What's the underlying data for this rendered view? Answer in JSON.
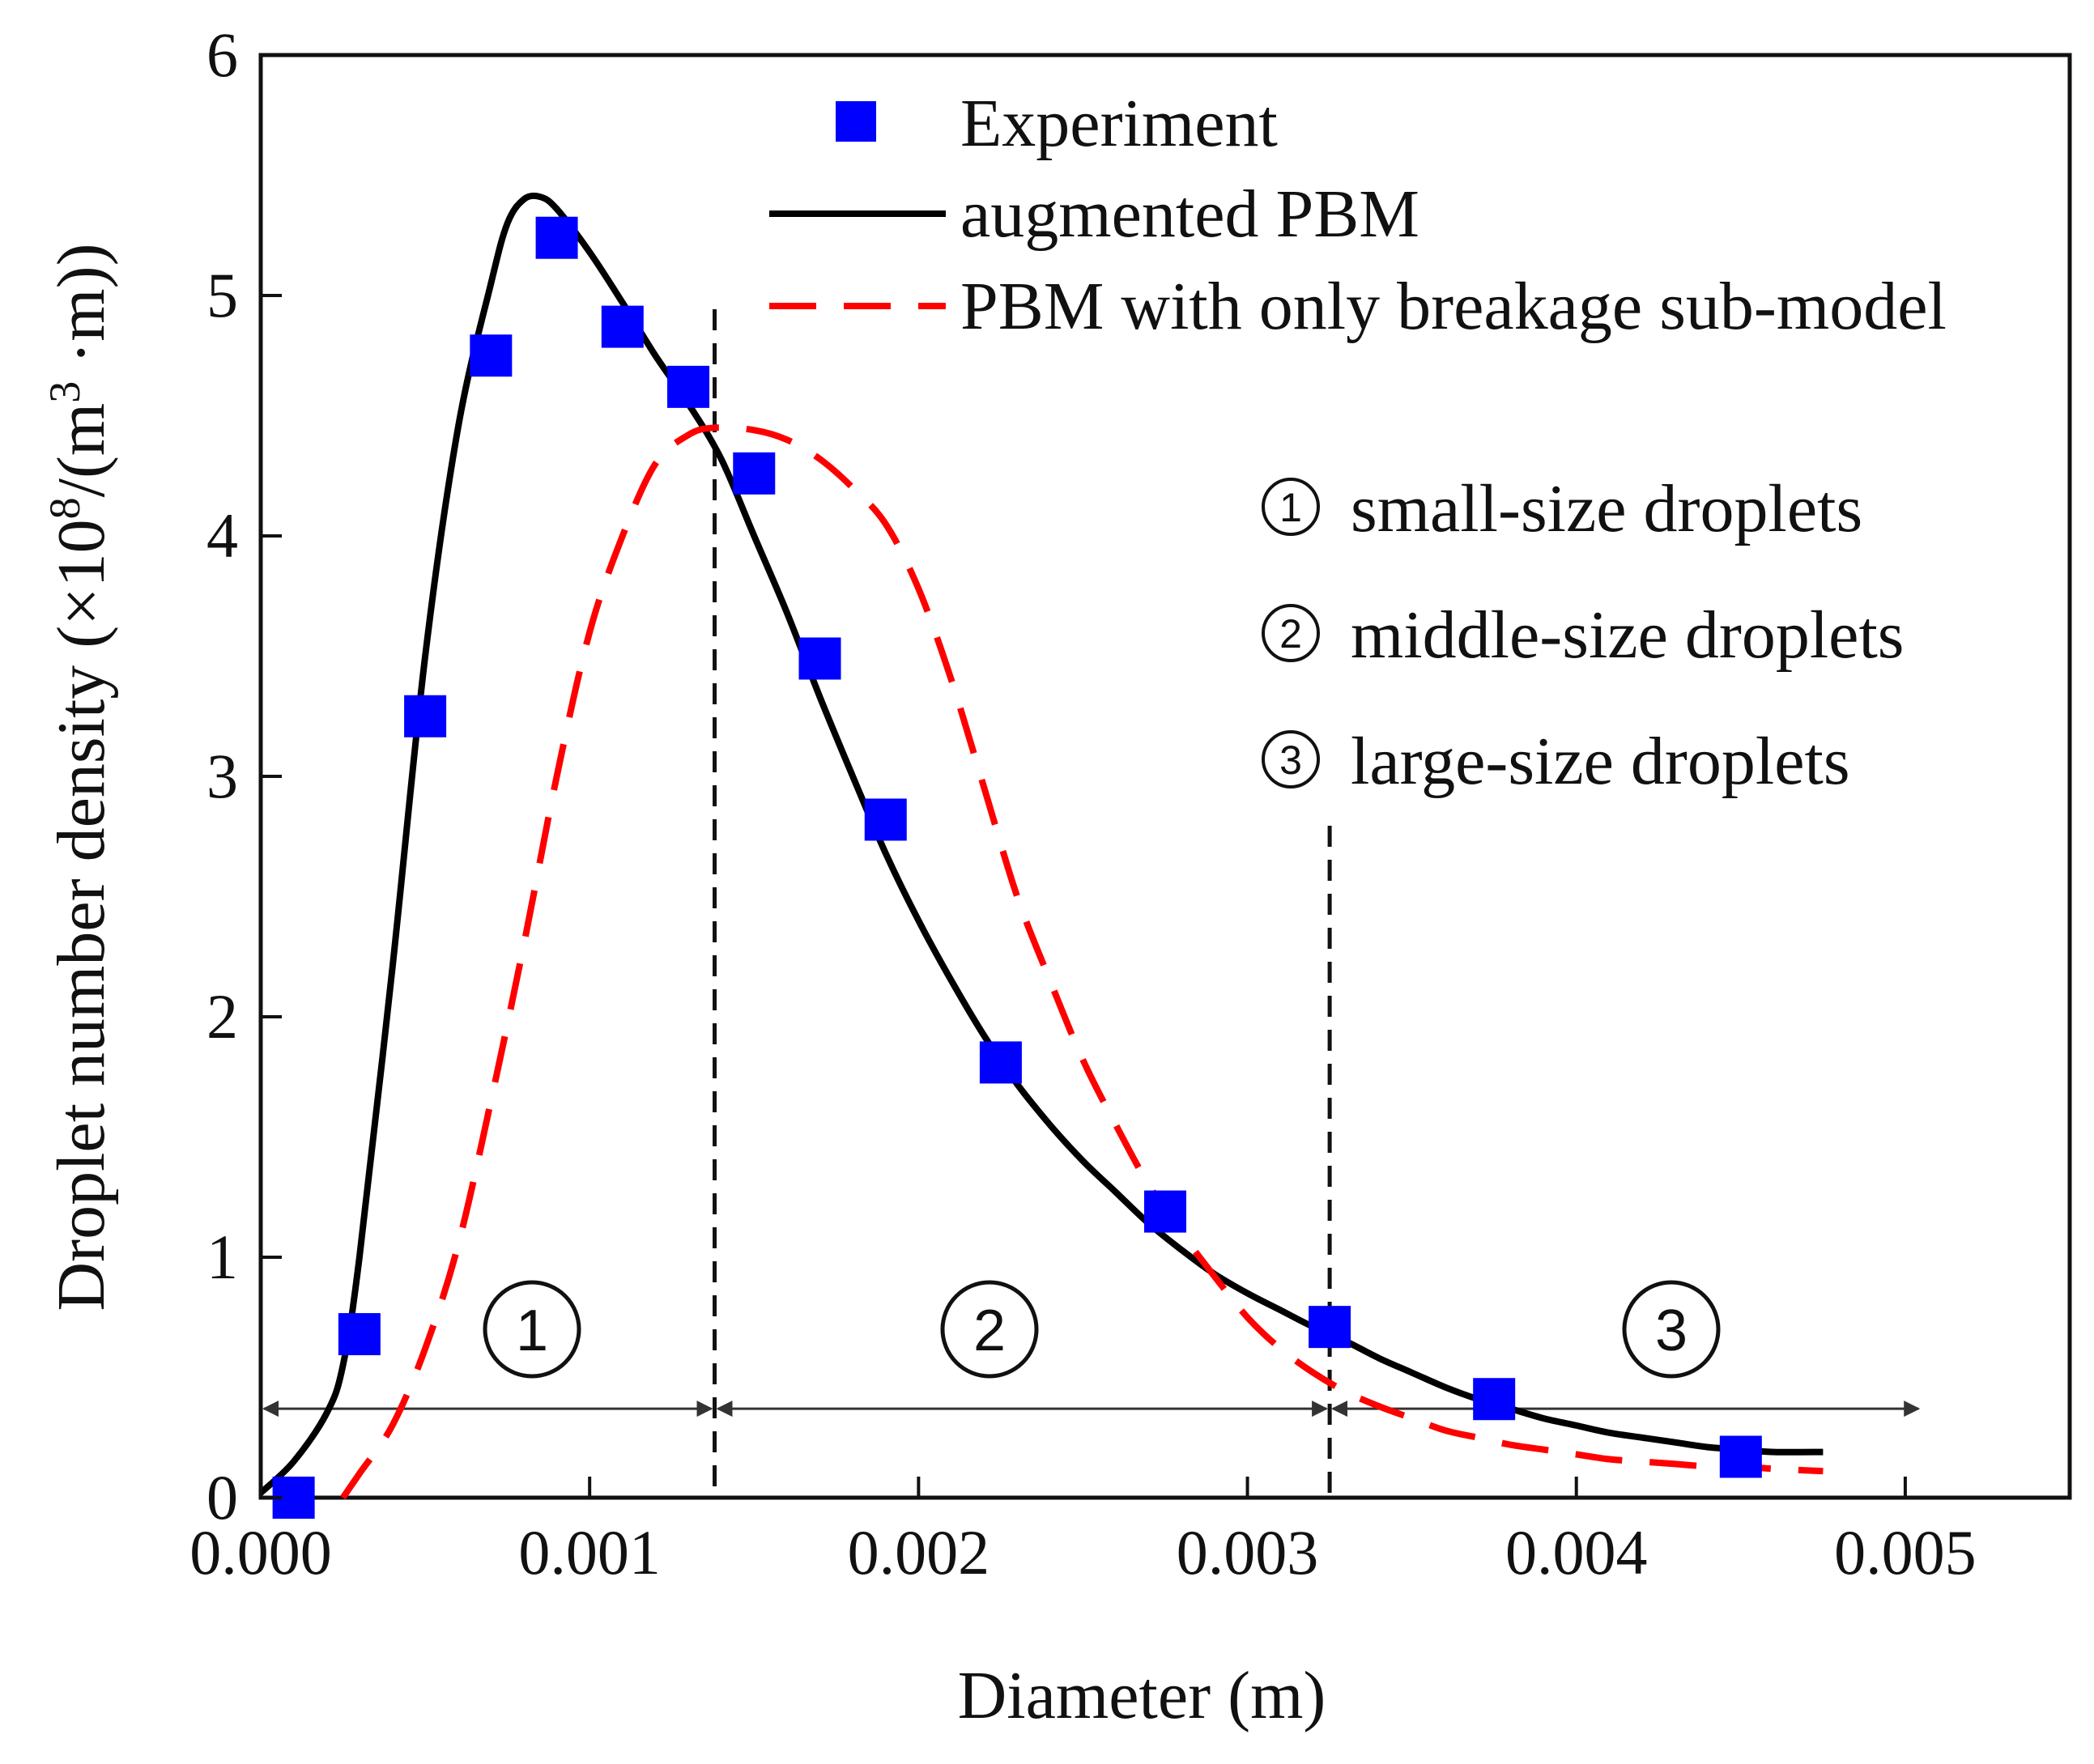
{
  "chart_data": {
    "type": "line",
    "title": "",
    "xlabel": "Diameter (m)",
    "ylabel": {
      "main": "Droplet number density (×10",
      "exp1": "8",
      "mid": "/(m",
      "exp2": "3",
      "end": " ·m))"
    },
    "xlim": [
      0,
      0.0055
    ],
    "ylim": [
      0,
      6
    ],
    "x_ticks": [
      0,
      0.001,
      0.002,
      0.003,
      0.004,
      0.005
    ],
    "x_tick_labels": [
      "0.000",
      "0.001",
      "0.002",
      "0.003",
      "0.004",
      "0.005"
    ],
    "y_ticks": [
      0,
      1,
      2,
      3,
      4,
      5,
      6
    ],
    "y_tick_labels": [
      "0",
      "1",
      "2",
      "3",
      "4",
      "5",
      "6"
    ],
    "grid": false,
    "legend_position": "top-right",
    "series": [
      {
        "name": "Experiment",
        "kind": "scatter",
        "color": "#0000ff",
        "x": [
          0.0001,
          0.0003,
          0.0005,
          0.0007,
          0.0009,
          0.0011,
          0.0013,
          0.0015,
          0.0017,
          0.0019,
          0.00225,
          0.00275,
          0.00325,
          0.00375,
          0.0045
        ],
        "y": [
          0.0,
          0.68,
          3.25,
          4.75,
          5.24,
          4.87,
          4.62,
          4.26,
          3.49,
          2.82,
          1.81,
          1.19,
          0.71,
          0.41,
          0.17
        ]
      },
      {
        "name": "augmented PBM",
        "kind": "line",
        "color": "#000000",
        "dash": "solid",
        "x": [
          0.0,
          0.0001,
          0.0002,
          0.00025,
          0.0003,
          0.0004,
          0.0005,
          0.0006,
          0.0007,
          0.00075,
          0.0008,
          0.00085,
          0.0009,
          0.001,
          0.0011,
          0.0012,
          0.0013,
          0.0014,
          0.0015,
          0.0016,
          0.0017,
          0.0018,
          0.0019,
          0.002,
          0.0021,
          0.0022,
          0.0023,
          0.0024,
          0.0025,
          0.0026,
          0.0027,
          0.0028,
          0.0029,
          0.003,
          0.0031,
          0.0032,
          0.0033,
          0.0034,
          0.0035,
          0.0036,
          0.0037,
          0.0038,
          0.0039,
          0.004,
          0.0041,
          0.0042,
          0.0043,
          0.0044,
          0.0045,
          0.0046,
          0.00475
        ],
        "y": [
          0.02,
          0.15,
          0.35,
          0.55,
          1.0,
          2.2,
          3.5,
          4.45,
          5.05,
          5.3,
          5.4,
          5.41,
          5.36,
          5.18,
          4.97,
          4.75,
          4.55,
          4.32,
          4.0,
          3.68,
          3.33,
          3.0,
          2.68,
          2.4,
          2.15,
          1.92,
          1.72,
          1.55,
          1.4,
          1.27,
          1.14,
          1.03,
          0.93,
          0.85,
          0.78,
          0.71,
          0.65,
          0.58,
          0.52,
          0.46,
          0.41,
          0.37,
          0.33,
          0.3,
          0.27,
          0.25,
          0.23,
          0.21,
          0.2,
          0.19,
          0.19
        ]
      },
      {
        "name": "PBM with only breakage sub-model",
        "kind": "line",
        "color": "#ff0000",
        "dash": "dashed",
        "x": [
          0.00025,
          0.0003,
          0.0004,
          0.0005,
          0.0006,
          0.0007,
          0.0008,
          0.0009,
          0.001,
          0.0011,
          0.0012,
          0.0013,
          0.00138,
          0.0015,
          0.0016,
          0.0017,
          0.0018,
          0.0019,
          0.002,
          0.0021,
          0.0022,
          0.0023,
          0.0024,
          0.0025,
          0.0026,
          0.0027,
          0.0028,
          0.0029,
          0.003,
          0.0031,
          0.0032,
          0.0033,
          0.0034,
          0.0035,
          0.0036,
          0.0037,
          0.0038,
          0.0039,
          0.004,
          0.0041,
          0.0042,
          0.0043,
          0.0044,
          0.0045,
          0.0046,
          0.00475
        ],
        "y": [
          0.0,
          0.1,
          0.3,
          0.62,
          1.05,
          1.65,
          2.3,
          3.0,
          3.6,
          4.0,
          4.3,
          4.42,
          4.45,
          4.44,
          4.4,
          4.32,
          4.2,
          4.05,
          3.78,
          3.4,
          2.95,
          2.5,
          2.15,
          1.82,
          1.55,
          1.3,
          1.1,
          0.92,
          0.75,
          0.62,
          0.52,
          0.44,
          0.38,
          0.33,
          0.28,
          0.25,
          0.22,
          0.2,
          0.18,
          0.16,
          0.15,
          0.14,
          0.13,
          0.13,
          0.12,
          0.11
        ]
      }
    ],
    "dividers_x": [
      0.00138,
      0.00325
    ],
    "regions": [
      {
        "num": "1",
        "label": "small-size droplets",
        "from": 0.0,
        "to": 0.00138
      },
      {
        "num": "2",
        "label": "middle-size droplets",
        "from": 0.00138,
        "to": 0.00325
      },
      {
        "num": "3",
        "label": "large-size droplets",
        "from": 0.00325,
        "to": 0.00505
      }
    ],
    "region_arrow_y": 0.37
  }
}
